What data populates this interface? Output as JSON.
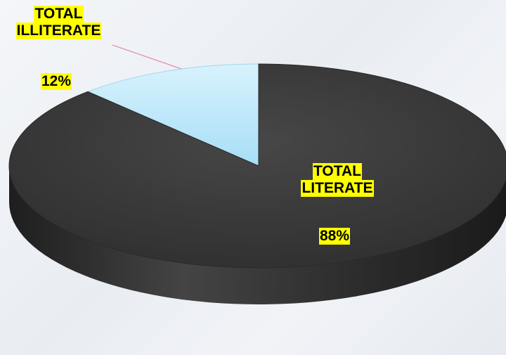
{
  "chart_data": {
    "type": "pie",
    "style": "3d",
    "title": "",
    "slices": [
      {
        "name_lines": [
          "TOTAL",
          "ILLITERATE"
        ],
        "value": 12,
        "value_label": "12%",
        "color": "#bfe8fb"
      },
      {
        "name_lines": [
          "TOTAL",
          "LITERATE"
        ],
        "value": 88,
        "value_label": "88%",
        "color": "#3b3b3b"
      }
    ],
    "legend": "none",
    "label_highlight_color": "#ffff00",
    "leader_line_color": "#e27aa6"
  }
}
